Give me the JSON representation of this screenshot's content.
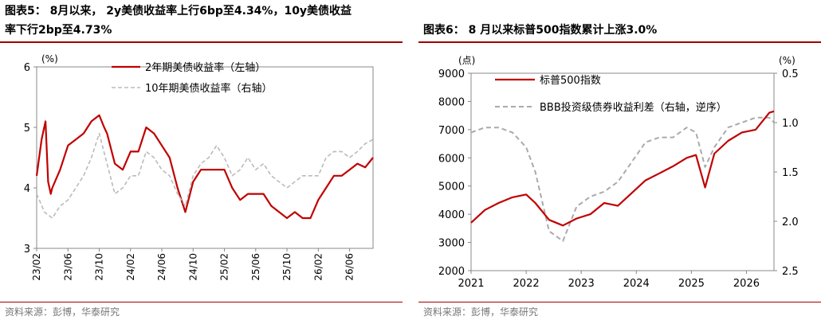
{
  "charts": {
    "left": {
      "title_line1": "图表5： 8月以来， 2y美债收益率上行6bp至4.34%，10y美债收益",
      "title_line2": "率下行2bp至4.73%",
      "source": "资料来源：彭博，华泰研究"
    },
    "right": {
      "title": "图表6： 8 月以来标普500指数累计上涨3.0%",
      "source": "资料来源：彭博，华泰研究"
    }
  },
  "chart_data": [
    {
      "type": "line",
      "title": "图表5： 8月以来， 2y美债收益率上行6bp至4.34%，10y美债收益率下行2bp至4.73%",
      "unit_label": "(%)",
      "ylim": [
        3,
        6
      ],
      "yticks": [
        "3",
        "4",
        "5",
        "6"
      ],
      "x_ticks": [
        "23/02",
        "23/06",
        "23/10",
        "24/02",
        "24/06",
        "24/10",
        "25/02",
        "25/06",
        "25/10",
        "26/02",
        "26/06"
      ],
      "x_range": [
        "2023-02",
        "2026-09"
      ],
      "legend_position": "top-center",
      "series": [
        {
          "name": "2年期美债收益率（左轴）",
          "color": "#c00000",
          "style": "solid",
          "x": [
            "2023-02",
            "2023-02-20",
            "2023-03-05",
            "2023-03-15",
            "2023-03-25",
            "2023-04",
            "2023-05",
            "2023-06",
            "2023-07",
            "2023-08",
            "2023-09",
            "2023-10",
            "2023-10-20",
            "2023-11",
            "2023-12",
            "2024-01",
            "2024-02",
            "2024-03",
            "2024-04",
            "2024-05",
            "2024-06",
            "2024-07",
            "2024-08",
            "2024-09",
            "2024-10",
            "2024-11",
            "2024-12",
            "2025-01",
            "2025-02",
            "2025-03",
            "2025-04",
            "2025-05",
            "2025-06",
            "2025-07",
            "2025-08",
            "2025-09",
            "2025-10",
            "2025-11",
            "2025-12",
            "2026-01",
            "2026-02",
            "2026-03",
            "2026-04",
            "2026-05",
            "2026-06",
            "2026-07",
            "2026-08",
            "2026-09"
          ],
          "y": [
            4.2,
            4.8,
            5.1,
            4.1,
            3.9,
            4.0,
            4.3,
            4.7,
            4.8,
            4.9,
            5.1,
            5.2,
            5.0,
            4.9,
            4.4,
            4.3,
            4.6,
            4.6,
            5.0,
            4.9,
            4.7,
            4.5,
            4.0,
            3.6,
            4.1,
            4.3,
            4.3,
            4.3,
            4.3,
            4.0,
            3.8,
            3.9,
            3.9,
            3.9,
            3.7,
            3.6,
            3.5,
            3.6,
            3.5,
            3.5,
            3.8,
            4.0,
            4.2,
            4.2,
            4.3,
            4.4,
            4.34,
            4.5
          ]
        },
        {
          "name": "10年期美债收益率（右轴）",
          "color": "#bbbbbb",
          "style": "dashed",
          "x": [
            "2023-02",
            "2023-03",
            "2023-04",
            "2023-05",
            "2023-06",
            "2023-07",
            "2023-08",
            "2023-09",
            "2023-10",
            "2023-11",
            "2023-12",
            "2024-01",
            "2024-02",
            "2024-03",
            "2024-04",
            "2024-05",
            "2024-06",
            "2024-07",
            "2024-08",
            "2024-09",
            "2024-10",
            "2024-11",
            "2024-12",
            "2025-01",
            "2025-02",
            "2025-03",
            "2025-04",
            "2025-05",
            "2025-06",
            "2025-07",
            "2025-08",
            "2025-09",
            "2025-10",
            "2025-11",
            "2025-12",
            "2026-01",
            "2026-02",
            "2026-03",
            "2026-04",
            "2026-05",
            "2026-06",
            "2026-07",
            "2026-08",
            "2026-09"
          ],
          "y": [
            3.9,
            3.6,
            3.5,
            3.7,
            3.8,
            4.0,
            4.2,
            4.5,
            4.9,
            4.4,
            3.9,
            4.0,
            4.2,
            4.2,
            4.6,
            4.5,
            4.3,
            4.2,
            3.9,
            3.7,
            4.2,
            4.4,
            4.5,
            4.7,
            4.5,
            4.2,
            4.3,
            4.5,
            4.3,
            4.4,
            4.2,
            4.1,
            4.0,
            4.1,
            4.2,
            4.2,
            4.2,
            4.5,
            4.6,
            4.6,
            4.5,
            4.6,
            4.73,
            4.8
          ]
        }
      ]
    },
    {
      "type": "line",
      "title": "图表6： 8 月以来标普500指数累计上涨3.0%",
      "unit_label_left": "(点)",
      "unit_label_right": "(%)",
      "ylim": [
        2000,
        9000
      ],
      "yticks": [
        "2000",
        "3000",
        "4000",
        "5000",
        "6000",
        "7000",
        "8000",
        "9000"
      ],
      "y2lim": [
        2.5,
        0.5
      ],
      "y2ticks": [
        "0.5",
        "1.0",
        "1.5",
        "2.0",
        "2.5"
      ],
      "y2_inverted": true,
      "x_ticks": [
        "2021",
        "2022",
        "2023",
        "2024",
        "2025",
        "2026"
      ],
      "x_range": [
        "2021-01",
        "2026-07"
      ],
      "legend_position": "top-left",
      "series": [
        {
          "name": "标普500指数",
          "color": "#c00000",
          "style": "solid",
          "axis": "left",
          "x": [
            "2021-01",
            "2021-04",
            "2021-07",
            "2021-10",
            "2022-01",
            "2022-03",
            "2022-06",
            "2022-09",
            "2022-12",
            "2023-03",
            "2023-06",
            "2023-09",
            "2023-12",
            "2024-03",
            "2024-06",
            "2024-09",
            "2024-12",
            "2025-02",
            "2025-04",
            "2025-06",
            "2025-09",
            "2025-12",
            "2026-03",
            "2026-06",
            "2026-07"
          ],
          "y": [
            3700,
            4150,
            4400,
            4600,
            4700,
            4400,
            3800,
            3600,
            3850,
            4000,
            4400,
            4300,
            4750,
            5200,
            5450,
            5700,
            6000,
            6100,
            4950,
            6150,
            6600,
            6900,
            7000,
            7600,
            7650
          ]
        },
        {
          "name": "BBB投资级债券收益利差（右轴，逆序）",
          "color": "#aaaaaa",
          "style": "dashed",
          "axis": "right",
          "x": [
            "2021-01",
            "2021-04",
            "2021-07",
            "2021-10",
            "2022-01",
            "2022-03",
            "2022-06",
            "2022-09",
            "2022-12",
            "2023-03",
            "2023-06",
            "2023-09",
            "2023-12",
            "2024-03",
            "2024-06",
            "2024-09",
            "2024-12",
            "2025-02",
            "2025-04",
            "2025-06",
            "2025-09",
            "2025-12",
            "2026-03",
            "2026-06",
            "2026-07"
          ],
          "y": [
            1.1,
            1.05,
            1.05,
            1.1,
            1.25,
            1.5,
            2.1,
            2.2,
            1.85,
            1.75,
            1.7,
            1.6,
            1.4,
            1.2,
            1.15,
            1.15,
            1.05,
            1.1,
            1.45,
            1.25,
            1.05,
            1.0,
            0.95,
            0.95,
            1.0
          ]
        }
      ]
    }
  ]
}
